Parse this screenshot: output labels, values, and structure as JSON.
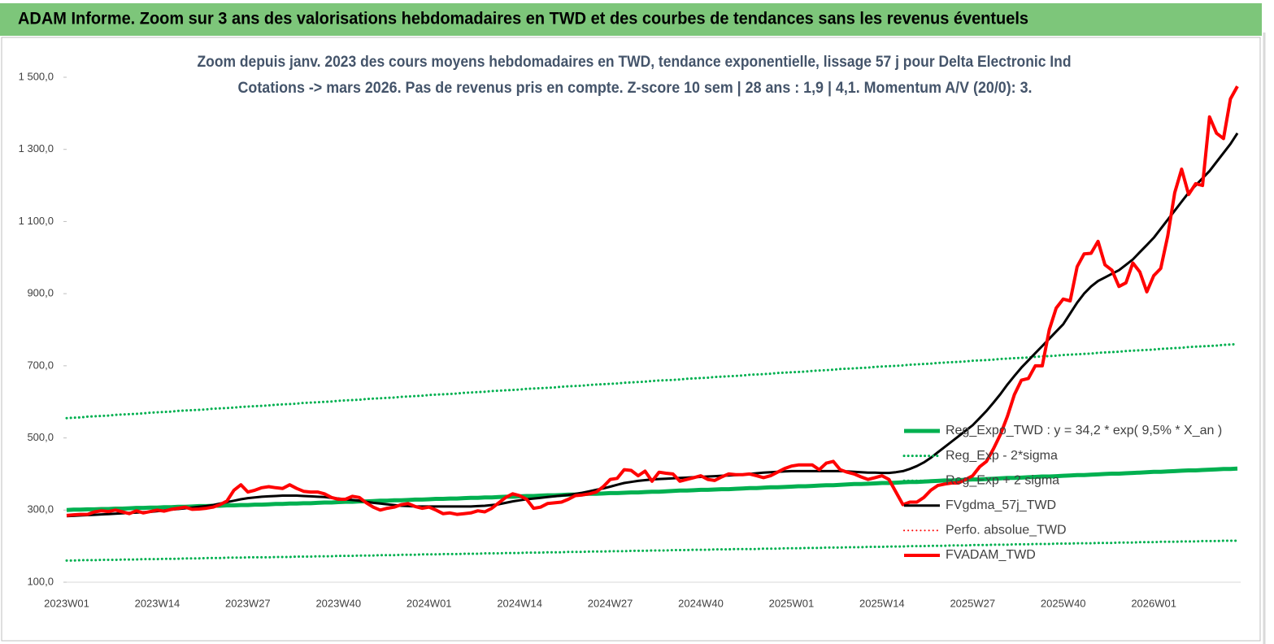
{
  "chart_data": {
    "type": "line",
    "title": "ADAM Informe. Zoom sur 3 ans des valorisations hebdomadaires en TWD et des courbes de tendances sans les revenus éventuels",
    "subtitle": [
      "Zoom depuis janv. 2023 des cours moyens hebdomadaires en TWD, tendance exponentielle, lissage 57 j pour Delta Electronic Ind",
      "Cotations -> mars 2026. Pas de revenus pris en compte. Z-score 10 sem | 28 ans : 1,9 | 4,1. Momentum A/V (20/0): 3."
    ],
    "categories": [
      "2023W01",
      null,
      null,
      null,
      null,
      null,
      null,
      null,
      null,
      null,
      null,
      null,
      null,
      "2023W14",
      null,
      null,
      null,
      null,
      null,
      null,
      null,
      null,
      null,
      null,
      null,
      null,
      "2023W27",
      null,
      null,
      null,
      null,
      null,
      null,
      null,
      null,
      null,
      null,
      null,
      null,
      "2023W40",
      null,
      null,
      null,
      null,
      null,
      null,
      null,
      null,
      null,
      null,
      null,
      null,
      "2024W01",
      null,
      null,
      null,
      null,
      null,
      null,
      null,
      null,
      null,
      null,
      null,
      null,
      "2024W14",
      null,
      null,
      null,
      null,
      null,
      null,
      null,
      null,
      null,
      null,
      null,
      null,
      "2024W27",
      null,
      null,
      null,
      null,
      null,
      null,
      null,
      null,
      null,
      null,
      null,
      null,
      "2024W40",
      null,
      null,
      null,
      null,
      null,
      null,
      null,
      null,
      null,
      null,
      null,
      null,
      "2025W01",
      null,
      null,
      null,
      null,
      null,
      null,
      null,
      null,
      null,
      null,
      null,
      null,
      "2025W14",
      null,
      null,
      null,
      null,
      null,
      null,
      null,
      null,
      null,
      null,
      null,
      null,
      "2025W27",
      null,
      null,
      null,
      null,
      null,
      null,
      null,
      null,
      null,
      null,
      null,
      null,
      "2025W40",
      null,
      null,
      null,
      null,
      null,
      null,
      null,
      null,
      null,
      null,
      null,
      null,
      "2026W01",
      null,
      null,
      null,
      null,
      null,
      null,
      null,
      null,
      null,
      null,
      null,
      null
    ],
    "ylim": [
      100,
      1500
    ],
    "yticks": [
      {
        "value": 100,
        "label": "100,0"
      },
      {
        "value": 300,
        "label": "300,0"
      },
      {
        "value": 500,
        "label": "500,0"
      },
      {
        "value": 700,
        "label": "700,0"
      },
      {
        "value": 900,
        "label": "900,0"
      },
      {
        "value": 1100,
        "label": "1 100,0"
      },
      {
        "value": 1300,
        "label": "1 300,0"
      },
      {
        "value": 1500,
        "label": "1 500,0"
      }
    ],
    "grid": false,
    "legend": "lower right",
    "series": [
      {
        "name": "Reg_Expo_TWD : y = 34,2 * exp( 9,5% *  X_an )",
        "color": "#00b050",
        "style": "solid",
        "linewidth": 5,
        "values": [
          300,
          301,
          301,
          302,
          302,
          303,
          303,
          304,
          304,
          305,
          306,
          306,
          307,
          307,
          308,
          308,
          309,
          309,
          310,
          311,
          311,
          312,
          312,
          313,
          313,
          314,
          314,
          315,
          315,
          316,
          317,
          317,
          318,
          318,
          319,
          319,
          320,
          321,
          321,
          322,
          323,
          323,
          324,
          324,
          325,
          326,
          326,
          327,
          327,
          328,
          329,
          329,
          330,
          331,
          331,
          332,
          332,
          333,
          334,
          334,
          335,
          335,
          336,
          337,
          337,
          338,
          339,
          339,
          340,
          341,
          341,
          342,
          343,
          343,
          344,
          345,
          345,
          346,
          347,
          347,
          348,
          349,
          349,
          350,
          351,
          351,
          352,
          353,
          354,
          354,
          355,
          356,
          356,
          357,
          358,
          358,
          359,
          360,
          361,
          361,
          362,
          363,
          363,
          364,
          365,
          366,
          366,
          367,
          368,
          369,
          369,
          370,
          371,
          372,
          372,
          373,
          374,
          375,
          375,
          376,
          377,
          378,
          378,
          379,
          380,
          381,
          382,
          382,
          383,
          384,
          385,
          385,
          386,
          387,
          388,
          389,
          389,
          390,
          391,
          392,
          393,
          393,
          394,
          395,
          396,
          397,
          397,
          398,
          399,
          400,
          401,
          401,
          402,
          403,
          404,
          405,
          406,
          406,
          407,
          408,
          409,
          410,
          410,
          411,
          412,
          413,
          414,
          414,
          415
        ]
      },
      {
        "name": "Reg_Exp - 2*sigma",
        "color": "#00b050",
        "style": "dotted",
        "linewidth": 3,
        "values": [
          160,
          160,
          161,
          161,
          161,
          162,
          162,
          162,
          163,
          163,
          163,
          164,
          164,
          164,
          165,
          165,
          165,
          166,
          166,
          166,
          167,
          167,
          167,
          168,
          168,
          168,
          169,
          169,
          169,
          169,
          170,
          170,
          170,
          171,
          171,
          171,
          172,
          172,
          172,
          173,
          173,
          173,
          174,
          174,
          174,
          175,
          175,
          175,
          176,
          176,
          176,
          177,
          177,
          177,
          178,
          178,
          178,
          179,
          179,
          179,
          180,
          180,
          180,
          181,
          181,
          181,
          182,
          182,
          182,
          183,
          183,
          183,
          184,
          184,
          184,
          185,
          185,
          185,
          186,
          186,
          186,
          187,
          187,
          187,
          188,
          188,
          188,
          189,
          189,
          189,
          190,
          190,
          190,
          191,
          191,
          191,
          192,
          192,
          192,
          192,
          193,
          193,
          193,
          194,
          194,
          194,
          195,
          195,
          195,
          196,
          196,
          196,
          197,
          197,
          197,
          198,
          198,
          198,
          199,
          199,
          199,
          200,
          200,
          200,
          201,
          201,
          201,
          202,
          202,
          202,
          203,
          203,
          203,
          204,
          204,
          204,
          205,
          205,
          205,
          206,
          206,
          206,
          207,
          207,
          207,
          208,
          208,
          208,
          209,
          209,
          209,
          210,
          210,
          210,
          211,
          211,
          211,
          212,
          212,
          212,
          213,
          213,
          213,
          214,
          214,
          214,
          215,
          215,
          215
        ]
      },
      {
        "name": "Reg_Exp + 2 sigma",
        "color": "#00b050",
        "style": "dotted",
        "linewidth": 3,
        "values": [
          555,
          556,
          557,
          559,
          560,
          561,
          562,
          564,
          565,
          566,
          567,
          568,
          570,
          571,
          572,
          573,
          575,
          576,
          577,
          578,
          579,
          581,
          582,
          583,
          584,
          586,
          587,
          588,
          589,
          590,
          592,
          593,
          594,
          595,
          597,
          598,
          599,
          600,
          601,
          603,
          604,
          605,
          606,
          608,
          609,
          610,
          611,
          612,
          614,
          615,
          616,
          617,
          619,
          620,
          621,
          622,
          623,
          625,
          626,
          627,
          628,
          630,
          631,
          632,
          633,
          634,
          636,
          637,
          638,
          639,
          640,
          642,
          643,
          644,
          645,
          647,
          648,
          649,
          650,
          651,
          653,
          654,
          655,
          656,
          658,
          659,
          660,
          661,
          662,
          664,
          665,
          666,
          667,
          669,
          670,
          671,
          672,
          673,
          675,
          676,
          677,
          678,
          680,
          681,
          682,
          683,
          684,
          686,
          687,
          688,
          689,
          691,
          692,
          693,
          694,
          695,
          697,
          698,
          699,
          700,
          701,
          703,
          704,
          705,
          706,
          708,
          709,
          710,
          711,
          712,
          714,
          715,
          716,
          717,
          719,
          720,
          721,
          722,
          723,
          725,
          726,
          727,
          728,
          730,
          731,
          732,
          733,
          734,
          736,
          737,
          738,
          739,
          741,
          742,
          743,
          744,
          745,
          747,
          748,
          749,
          750,
          752,
          753,
          754,
          755,
          756,
          758,
          759,
          760
        ]
      },
      {
        "name": "FVgdma_57j_TWD",
        "color": "#000000",
        "style": "solid",
        "linewidth": 3,
        "values": [
          283,
          284,
          285,
          286,
          287,
          288,
          289,
          290,
          291,
          292,
          293,
          294,
          295,
          297,
          299,
          301,
          303,
          305,
          307,
          309,
          311,
          314,
          318,
          322,
          326,
          330,
          333,
          335,
          337,
          338,
          339,
          340,
          340,
          340,
          339,
          338,
          337,
          336,
          334,
          332,
          330,
          328,
          326,
          323,
          320,
          318,
          316,
          314,
          312,
          311,
          310,
          310,
          310,
          310,
          310,
          310,
          310,
          310,
          310,
          311,
          312,
          314,
          316,
          320,
          324,
          327,
          330,
          332,
          334,
          336,
          338,
          340,
          342,
          345,
          348,
          352,
          356,
          360,
          365,
          370,
          375,
          378,
          381,
          383,
          385,
          386,
          387,
          388,
          389,
          390,
          391,
          392,
          393,
          394,
          395,
          396,
          397,
          398,
          400,
          402,
          404,
          405,
          406,
          407,
          408,
          408,
          408,
          408,
          408,
          408,
          408,
          408,
          407,
          406,
          405,
          404,
          404,
          403,
          403,
          405,
          408,
          414,
          422,
          432,
          445,
          460,
          475,
          490,
          505,
          520,
          535,
          555,
          575,
          598,
          622,
          648,
          672,
          695,
          715,
          735,
          755,
          775,
          795,
          815,
          845,
          875,
          900,
          920,
          935,
          945,
          955,
          965,
          980,
          995,
          1015,
          1035,
          1055,
          1080,
          1105,
          1130,
          1155,
          1180,
          1200,
          1220,
          1240,
          1265,
          1290,
          1315,
          1345
        ]
      },
      {
        "name": "Perfo. absolue_TWD",
        "color": "#ff0000",
        "style": "dotted",
        "linewidth": 2
      },
      {
        "name": "FVADAM_TWD",
        "color": "#ff0000",
        "style": "solid",
        "linewidth": 4,
        "values": [
          285,
          287,
          288,
          288,
          295,
          298,
          296,
          300,
          295,
          290,
          298,
          292,
          296,
          300,
          297,
          302,
          305,
          308,
          302,
          303,
          305,
          308,
          315,
          325,
          355,
          370,
          350,
          355,
          362,
          365,
          362,
          360,
          370,
          360,
          352,
          350,
          350,
          345,
          335,
          330,
          330,
          338,
          335,
          320,
          308,
          300,
          305,
          308,
          315,
          318,
          310,
          305,
          308,
          300,
          290,
          292,
          288,
          290,
          292,
          298,
          295,
          305,
          320,
          335,
          345,
          340,
          330,
          305,
          308,
          318,
          320,
          322,
          330,
          340,
          342,
          345,
          350,
          365,
          385,
          388,
          412,
          410,
          395,
          408,
          380,
          405,
          402,
          400,
          380,
          385,
          390,
          395,
          385,
          382,
          392,
          400,
          398,
          398,
          400,
          395,
          390,
          395,
          405,
          415,
          422,
          425,
          425,
          425,
          412,
          430,
          435,
          412,
          405,
          400,
          392,
          385,
          390,
          395,
          385,
          350,
          315,
          322,
          322,
          335,
          355,
          368,
          372,
          375,
          375,
          385,
          395,
          420,
          435,
          470,
          510,
          560,
          620,
          660,
          665,
          700,
          700,
          800,
          860,
          885,
          880,
          975,
          1010,
          1012,
          1045,
          980,
          965,
          920,
          930,
          985,
          960,
          905,
          950,
          970,
          1060,
          1180,
          1245,
          1175,
          1205,
          1200,
          1390,
          1345,
          1330,
          1440,
          1475
        ]
      }
    ]
  }
}
